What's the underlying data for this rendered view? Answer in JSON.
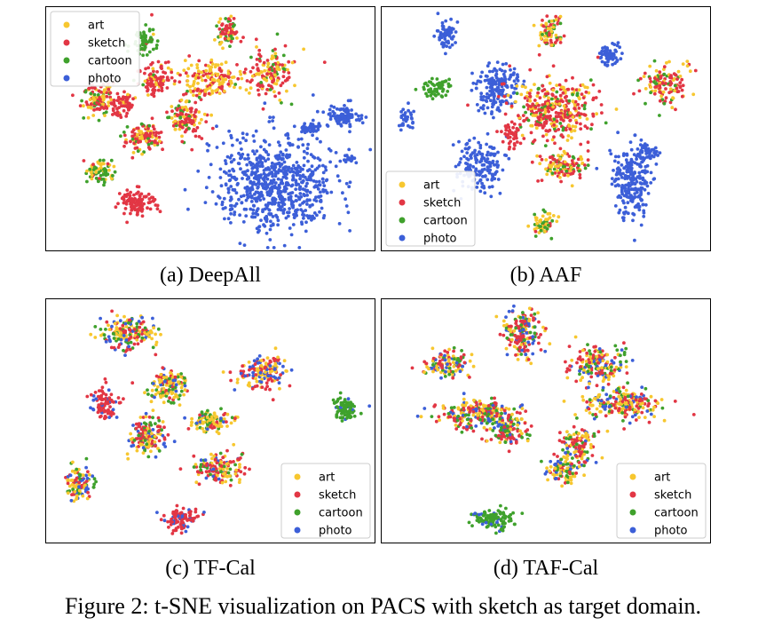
{
  "figure_caption": "Figure 2: t-SNE visualization on PACS with sketch as target domain.",
  "colors": {
    "art": "#f7c72f",
    "sketch": "#e23644",
    "cartoon": "#3fa12c",
    "photo": "#3c5fd8"
  },
  "legend_labels": [
    "art",
    "sketch",
    "cartoon",
    "photo"
  ],
  "chart_data": [
    {
      "type": "scatter",
      "caption": "(a) DeepAll",
      "legend_position": "top-left",
      "series": [
        {
          "name": "art"
        },
        {
          "name": "sketch"
        },
        {
          "name": "cartoon"
        },
        {
          "name": "photo"
        }
      ],
      "clusters": [
        {
          "cx": 0.3,
          "cy": 0.14,
          "rx": 0.035,
          "ry": 0.06,
          "n": 60,
          "mix": {
            "cartoon": 0.9,
            "sketch": 0.05,
            "art": 0.05
          }
        },
        {
          "cx": 0.55,
          "cy": 0.1,
          "rx": 0.035,
          "ry": 0.07,
          "n": 70,
          "mix": {
            "sketch": 0.4,
            "art": 0.3,
            "cartoon": 0.3
          }
        },
        {
          "cx": 0.5,
          "cy": 0.3,
          "rx": 0.09,
          "ry": 0.07,
          "n": 160,
          "mix": {
            "art": 0.55,
            "sketch": 0.45
          }
        },
        {
          "cx": 0.33,
          "cy": 0.3,
          "rx": 0.05,
          "ry": 0.07,
          "n": 110,
          "mix": {
            "sketch": 0.85,
            "art": 0.1,
            "cartoon": 0.05
          }
        },
        {
          "cx": 0.68,
          "cy": 0.28,
          "rx": 0.07,
          "ry": 0.1,
          "n": 150,
          "mix": {
            "sketch": 0.45,
            "art": 0.35,
            "cartoon": 0.2
          }
        },
        {
          "cx": 0.16,
          "cy": 0.38,
          "rx": 0.05,
          "ry": 0.07,
          "n": 110,
          "mix": {
            "sketch": 0.4,
            "art": 0.4,
            "cartoon": 0.2
          }
        },
        {
          "cx": 0.43,
          "cy": 0.45,
          "rx": 0.05,
          "ry": 0.08,
          "n": 130,
          "mix": {
            "sketch": 0.55,
            "art": 0.3,
            "cartoon": 0.15
          }
        },
        {
          "cx": 0.3,
          "cy": 0.54,
          "rx": 0.06,
          "ry": 0.06,
          "n": 110,
          "mix": {
            "sketch": 0.5,
            "art": 0.3,
            "cartoon": 0.2
          }
        },
        {
          "cx": 0.23,
          "cy": 0.4,
          "rx": 0.04,
          "ry": 0.05,
          "n": 70,
          "mix": {
            "sketch": 0.9,
            "art": 0.1
          }
        },
        {
          "cx": 0.16,
          "cy": 0.68,
          "rx": 0.045,
          "ry": 0.05,
          "n": 80,
          "mix": {
            "cartoon": 0.5,
            "art": 0.4,
            "sketch": 0.1
          }
        },
        {
          "cx": 0.28,
          "cy": 0.8,
          "rx": 0.06,
          "ry": 0.05,
          "n": 110,
          "mix": {
            "sketch": 1.0
          }
        },
        {
          "cx": 0.7,
          "cy": 0.72,
          "rx": 0.18,
          "ry": 0.2,
          "n": 700,
          "mix": {
            "photo": 1.0
          }
        },
        {
          "cx": 0.9,
          "cy": 0.45,
          "rx": 0.05,
          "ry": 0.05,
          "n": 90,
          "mix": {
            "photo": 1.0
          }
        },
        {
          "cx": 0.8,
          "cy": 0.5,
          "rx": 0.04,
          "ry": 0.03,
          "n": 40,
          "mix": {
            "photo": 1.0
          }
        },
        {
          "cx": 0.92,
          "cy": 0.62,
          "rx": 0.02,
          "ry": 0.015,
          "n": 15,
          "mix": {
            "photo": 1.0
          }
        }
      ]
    },
    {
      "type": "scatter",
      "caption": "(b) AAF",
      "legend_position": "bottom-left",
      "series": [
        {
          "name": "art"
        },
        {
          "name": "sketch"
        },
        {
          "name": "cartoon"
        },
        {
          "name": "photo"
        }
      ],
      "clusters": [
        {
          "cx": 0.2,
          "cy": 0.12,
          "rx": 0.03,
          "ry": 0.06,
          "n": 60,
          "mix": {
            "photo": 1.0
          }
        },
        {
          "cx": 0.51,
          "cy": 0.1,
          "rx": 0.04,
          "ry": 0.07,
          "n": 80,
          "mix": {
            "sketch": 0.4,
            "art": 0.3,
            "cartoon": 0.3
          }
        },
        {
          "cx": 0.69,
          "cy": 0.2,
          "rx": 0.035,
          "ry": 0.05,
          "n": 60,
          "mix": {
            "photo": 1.0
          }
        },
        {
          "cx": 0.86,
          "cy": 0.32,
          "rx": 0.07,
          "ry": 0.08,
          "n": 130,
          "mix": {
            "sketch": 0.45,
            "art": 0.35,
            "cartoon": 0.2
          }
        },
        {
          "cx": 0.17,
          "cy": 0.33,
          "rx": 0.04,
          "ry": 0.04,
          "n": 60,
          "mix": {
            "cartoon": 1.0
          }
        },
        {
          "cx": 0.35,
          "cy": 0.33,
          "rx": 0.07,
          "ry": 0.1,
          "n": 170,
          "mix": {
            "photo": 1.0
          }
        },
        {
          "cx": 0.52,
          "cy": 0.42,
          "rx": 0.14,
          "ry": 0.12,
          "n": 380,
          "mix": {
            "sketch": 0.55,
            "art": 0.3,
            "cartoon": 0.15
          }
        },
        {
          "cx": 0.55,
          "cy": 0.65,
          "rx": 0.07,
          "ry": 0.06,
          "n": 120,
          "mix": {
            "sketch": 0.4,
            "art": 0.35,
            "cartoon": 0.25
          }
        },
        {
          "cx": 0.08,
          "cy": 0.45,
          "rx": 0.025,
          "ry": 0.05,
          "n": 30,
          "mix": {
            "photo": 1.0
          }
        },
        {
          "cx": 0.3,
          "cy": 0.65,
          "rx": 0.07,
          "ry": 0.1,
          "n": 160,
          "mix": {
            "photo": 1.0
          }
        },
        {
          "cx": 0.4,
          "cy": 0.52,
          "rx": 0.03,
          "ry": 0.05,
          "n": 40,
          "mix": {
            "sketch": 1.0
          }
        },
        {
          "cx": 0.76,
          "cy": 0.72,
          "rx": 0.06,
          "ry": 0.14,
          "n": 230,
          "mix": {
            "photo": 1.0
          }
        },
        {
          "cx": 0.81,
          "cy": 0.6,
          "rx": 0.04,
          "ry": 0.04,
          "n": 40,
          "mix": {
            "photo": 1.0
          }
        },
        {
          "cx": 0.49,
          "cy": 0.89,
          "rx": 0.03,
          "ry": 0.05,
          "n": 60,
          "mix": {
            "art": 0.6,
            "cartoon": 0.3,
            "sketch": 0.1
          }
        }
      ]
    },
    {
      "type": "scatter",
      "caption": "(c) TF-Cal",
      "legend_position": "bottom-right",
      "series": [
        {
          "name": "art"
        },
        {
          "name": "sketch"
        },
        {
          "name": "cartoon"
        },
        {
          "name": "photo"
        }
      ],
      "clusters": [
        {
          "cx": 0.25,
          "cy": 0.14,
          "rx": 0.09,
          "ry": 0.07,
          "n": 180,
          "mix": {
            "sketch": 0.3,
            "art": 0.3,
            "cartoon": 0.2,
            "photo": 0.2
          }
        },
        {
          "cx": 0.37,
          "cy": 0.36,
          "rx": 0.06,
          "ry": 0.06,
          "n": 140,
          "mix": {
            "art": 0.45,
            "sketch": 0.2,
            "cartoon": 0.2,
            "photo": 0.15
          }
        },
        {
          "cx": 0.66,
          "cy": 0.3,
          "rx": 0.07,
          "ry": 0.07,
          "n": 160,
          "mix": {
            "art": 0.45,
            "sketch": 0.35,
            "photo": 0.2
          }
        },
        {
          "cx": 0.18,
          "cy": 0.43,
          "rx": 0.04,
          "ry": 0.06,
          "n": 90,
          "mix": {
            "sketch": 0.8,
            "photo": 0.2
          }
        },
        {
          "cx": 0.91,
          "cy": 0.45,
          "rx": 0.035,
          "ry": 0.05,
          "n": 90,
          "mix": {
            "cartoon": 0.9,
            "photo": 0.1
          }
        },
        {
          "cx": 0.31,
          "cy": 0.57,
          "rx": 0.05,
          "ry": 0.08,
          "n": 150,
          "mix": {
            "sketch": 0.45,
            "art": 0.25,
            "cartoon": 0.15,
            "photo": 0.15
          }
        },
        {
          "cx": 0.5,
          "cy": 0.5,
          "rx": 0.07,
          "ry": 0.04,
          "n": 110,
          "mix": {
            "art": 0.45,
            "cartoon": 0.25,
            "sketch": 0.15,
            "photo": 0.15
          }
        },
        {
          "cx": 0.53,
          "cy": 0.69,
          "rx": 0.08,
          "ry": 0.06,
          "n": 160,
          "mix": {
            "sketch": 0.45,
            "art": 0.3,
            "cartoon": 0.15,
            "photo": 0.1
          }
        },
        {
          "cx": 0.1,
          "cy": 0.75,
          "rx": 0.04,
          "ry": 0.07,
          "n": 110,
          "mix": {
            "art": 0.35,
            "sketch": 0.25,
            "cartoon": 0.2,
            "photo": 0.2
          }
        },
        {
          "cx": 0.41,
          "cy": 0.9,
          "rx": 0.05,
          "ry": 0.05,
          "n": 100,
          "mix": {
            "sketch": 0.7,
            "photo": 0.3
          }
        }
      ]
    },
    {
      "type": "scatter",
      "caption": "(d) TAF-Cal",
      "legend_position": "bottom-right",
      "series": [
        {
          "name": "art"
        },
        {
          "name": "sketch"
        },
        {
          "name": "cartoon"
        },
        {
          "name": "photo"
        }
      ],
      "clusters": [
        {
          "cx": 0.43,
          "cy": 0.14,
          "rx": 0.06,
          "ry": 0.09,
          "n": 180,
          "mix": {
            "sketch": 0.4,
            "art": 0.25,
            "cartoon": 0.2,
            "photo": 0.15
          }
        },
        {
          "cx": 0.2,
          "cy": 0.27,
          "rx": 0.07,
          "ry": 0.05,
          "n": 130,
          "mix": {
            "art": 0.3,
            "sketch": 0.3,
            "cartoon": 0.2,
            "photo": 0.2
          }
        },
        {
          "cx": 0.65,
          "cy": 0.27,
          "rx": 0.08,
          "ry": 0.08,
          "n": 180,
          "mix": {
            "art": 0.3,
            "sketch": 0.35,
            "cartoon": 0.2,
            "photo": 0.15
          }
        },
        {
          "cx": 0.3,
          "cy": 0.47,
          "rx": 0.13,
          "ry": 0.06,
          "n": 260,
          "mix": {
            "sketch": 0.3,
            "art": 0.3,
            "cartoon": 0.2,
            "photo": 0.2
          }
        },
        {
          "cx": 0.73,
          "cy": 0.43,
          "rx": 0.13,
          "ry": 0.06,
          "n": 230,
          "mix": {
            "art": 0.35,
            "sketch": 0.3,
            "cartoon": 0.15,
            "photo": 0.2
          }
        },
        {
          "cx": 0.39,
          "cy": 0.55,
          "rx": 0.06,
          "ry": 0.06,
          "n": 120,
          "mix": {
            "sketch": 0.35,
            "art": 0.25,
            "cartoon": 0.25,
            "photo": 0.15
          }
        },
        {
          "cx": 0.6,
          "cy": 0.6,
          "rx": 0.05,
          "ry": 0.07,
          "n": 120,
          "mix": {
            "sketch": 0.5,
            "art": 0.2,
            "cartoon": 0.15,
            "photo": 0.15
          }
        },
        {
          "cx": 0.55,
          "cy": 0.7,
          "rx": 0.05,
          "ry": 0.05,
          "n": 100,
          "mix": {
            "art": 0.35,
            "cartoon": 0.3,
            "sketch": 0.2,
            "photo": 0.15
          }
        },
        {
          "cx": 0.34,
          "cy": 0.9,
          "rx": 0.06,
          "ry": 0.04,
          "n": 110,
          "mix": {
            "cartoon": 0.85,
            "photo": 0.15
          }
        }
      ]
    }
  ]
}
